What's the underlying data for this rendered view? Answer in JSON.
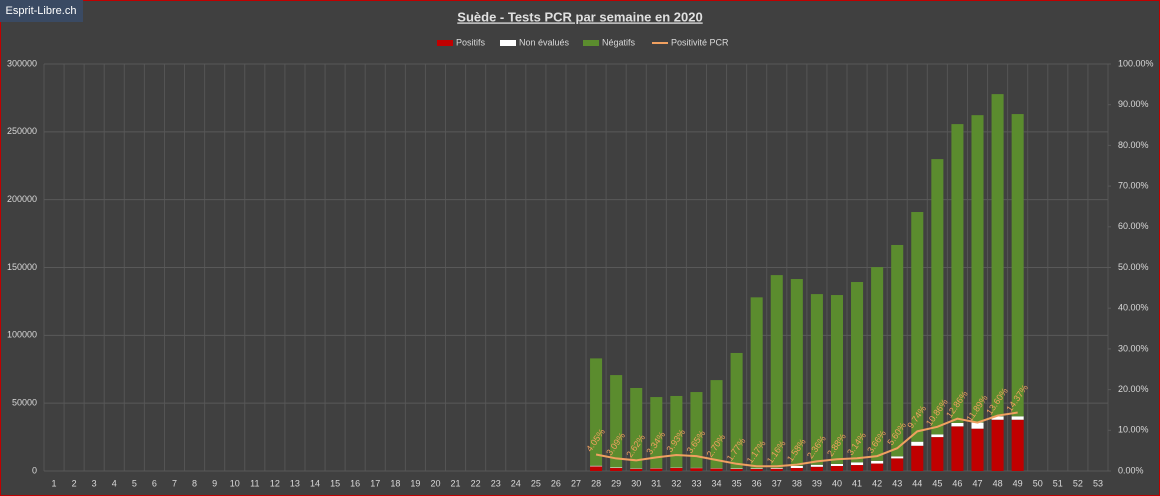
{
  "watermark": "Esprit-Libre.ch",
  "chart_data": {
    "type": "bar",
    "stacked": true,
    "title": "Suède - Tests PCR par semaine en 2020",
    "categories": [
      "1",
      "2",
      "3",
      "4",
      "5",
      "6",
      "7",
      "8",
      "9",
      "10",
      "11",
      "12",
      "13",
      "14",
      "15",
      "16",
      "17",
      "18",
      "19",
      "20",
      "21",
      "22",
      "23",
      "24",
      "25",
      "26",
      "27",
      "28",
      "29",
      "30",
      "31",
      "32",
      "33",
      "34",
      "35",
      "36",
      "37",
      "38",
      "39",
      "40",
      "41",
      "42",
      "43",
      "44",
      "45",
      "46",
      "47",
      "48",
      "49",
      "50",
      "51",
      "52",
      "53"
    ],
    "series": [
      {
        "name": "Positifs",
        "color": "#c00000",
        "values": [
          null,
          null,
          null,
          null,
          null,
          null,
          null,
          null,
          null,
          null,
          null,
          null,
          null,
          null,
          null,
          null,
          null,
          null,
          null,
          null,
          null,
          null,
          null,
          null,
          null,
          null,
          null,
          3400,
          2200,
          1600,
          1800,
          2200,
          2100,
          1800,
          1500,
          1500,
          1700,
          2200,
          3100,
          3700,
          4400,
          5500,
          9300,
          18600,
          25000,
          32900,
          31200,
          37800,
          37800,
          null,
          null,
          null,
          null
        ]
      },
      {
        "name": "Non évalués",
        "color": "#ffffff",
        "values": [
          null,
          null,
          null,
          null,
          null,
          null,
          null,
          null,
          null,
          null,
          null,
          null,
          null,
          null,
          null,
          null,
          null,
          null,
          null,
          null,
          null,
          null,
          null,
          null,
          null,
          null,
          null,
          500,
          400,
          300,
          300,
          300,
          300,
          300,
          400,
          500,
          600,
          1500,
          1500,
          1500,
          2000,
          2000,
          1500,
          3000,
          2000,
          2500,
          4500,
          2500,
          2500,
          null,
          null,
          null,
          null
        ]
      },
      {
        "name": "Négatifs",
        "color": "#5b8c2e",
        "values": [
          null,
          null,
          null,
          null,
          null,
          null,
          null,
          null,
          null,
          null,
          null,
          null,
          null,
          null,
          null,
          null,
          null,
          null,
          null,
          null,
          null,
          null,
          null,
          null,
          null,
          null,
          null,
          79100,
          68100,
          59300,
          52400,
          52800,
          55800,
          64900,
          85100,
          126000,
          142100,
          137800,
          125800,
          124500,
          132900,
          142800,
          155800,
          169300,
          202900,
          220300,
          226600,
          237500,
          222800,
          null,
          null,
          null,
          null
        ]
      },
      {
        "name": "Positivité PCR",
        "type": "line",
        "axis": "y2",
        "color": "#f0a060",
        "values": [
          null,
          null,
          null,
          null,
          null,
          null,
          null,
          null,
          null,
          null,
          null,
          null,
          null,
          null,
          null,
          null,
          null,
          null,
          null,
          null,
          null,
          null,
          null,
          null,
          null,
          null,
          null,
          4.05,
          3.09,
          2.62,
          3.34,
          3.93,
          3.65,
          2.7,
          1.77,
          1.17,
          1.16,
          1.58,
          2.36,
          2.88,
          3.14,
          3.66,
          5.6,
          9.74,
          10.86,
          12.86,
          11.89,
          13.6,
          14.37,
          null,
          null,
          null,
          null
        ],
        "value_labels": [
          null,
          null,
          null,
          null,
          null,
          null,
          null,
          null,
          null,
          null,
          null,
          null,
          null,
          null,
          null,
          null,
          null,
          null,
          null,
          null,
          null,
          null,
          null,
          null,
          null,
          null,
          null,
          "4.05%",
          "3.09%",
          "2.62%",
          "3.34%",
          "3.93%",
          "3.65%",
          "2.70%",
          "1.77%",
          "1.17%",
          "1.16%",
          "1.58%",
          "2.36%",
          "2.88%",
          "3.14%",
          "3.66%",
          "5.60%",
          "9.74%",
          "10.86%",
          "12.86%",
          "11.89%",
          "13.60%",
          "14.37%",
          null,
          null,
          null,
          null
        ]
      }
    ],
    "ylim": [
      0,
      300000
    ],
    "yticks": [
      0,
      50000,
      100000,
      150000,
      200000,
      250000,
      300000
    ],
    "y2lim": [
      0,
      100
    ],
    "y2ticks": [
      {
        "value": 0,
        "label": "0.00%"
      },
      {
        "value": 10,
        "label": "10.00%"
      },
      {
        "value": 20,
        "label": "20.00%"
      },
      {
        "value": 30,
        "label": "30.00%"
      },
      {
        "value": 40,
        "label": "40.00%"
      },
      {
        "value": 50,
        "label": "50.00%"
      },
      {
        "value": 60,
        "label": "60.00%"
      },
      {
        "value": 70,
        "label": "70.00%"
      },
      {
        "value": 80,
        "label": "80.00%"
      },
      {
        "value": 90,
        "label": "90.00%"
      },
      {
        "value": 100,
        "label": "100.00%"
      }
    ],
    "grid": true,
    "legend": "top"
  }
}
